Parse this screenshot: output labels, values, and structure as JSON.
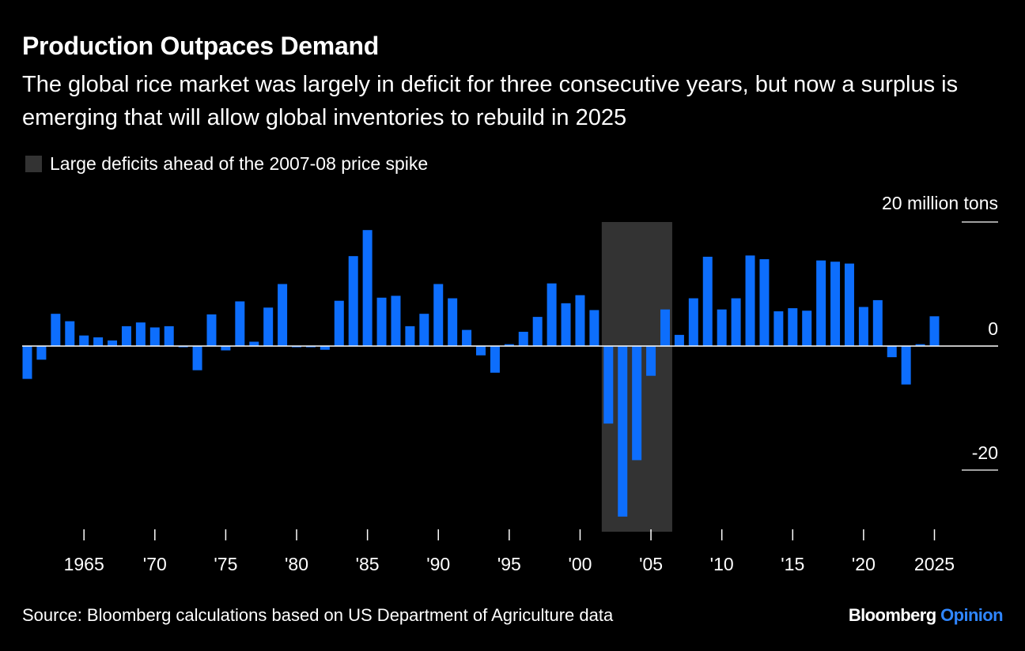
{
  "chart_data": {
    "type": "bar",
    "title": "Production Outpaces Demand",
    "subtitle": "The global rice market was largely in deficit for three consecutive years, but now a surplus is emerging that will allow global inventories to rebuild in 2025",
    "legend": [
      {
        "label": "Large deficits ahead of the 2007-08 price spike",
        "color": "#333333"
      }
    ],
    "highlight_range": [
      2002,
      2006
    ],
    "y_unit_label": "20 million tons",
    "y_ticks": [
      {
        "value": 20,
        "label": ""
      },
      {
        "value": 0,
        "label": "0"
      },
      {
        "value": -20,
        "label": "-20"
      }
    ],
    "ylim": [
      -30,
      20
    ],
    "x_tick_labels": [
      {
        "year": 1965,
        "label": "1965"
      },
      {
        "year": 1970,
        "label": "'70"
      },
      {
        "year": 1975,
        "label": "'75"
      },
      {
        "year": 1980,
        "label": "'80"
      },
      {
        "year": 1985,
        "label": "'85"
      },
      {
        "year": 1990,
        "label": "'90"
      },
      {
        "year": 1995,
        "label": "'95"
      },
      {
        "year": 2000,
        "label": "'00"
      },
      {
        "year": 2005,
        "label": "'05"
      },
      {
        "year": 2010,
        "label": "'10"
      },
      {
        "year": 2015,
        "label": "'15"
      },
      {
        "year": 2020,
        "label": "'20"
      },
      {
        "year": 2025,
        "label": "2025"
      }
    ],
    "bar_color": "#0d6efd",
    "years": [
      1961,
      1962,
      1963,
      1964,
      1965,
      1966,
      1967,
      1968,
      1969,
      1970,
      1971,
      1972,
      1973,
      1974,
      1975,
      1976,
      1977,
      1978,
      1979,
      1980,
      1981,
      1982,
      1983,
      1984,
      1985,
      1986,
      1987,
      1988,
      1989,
      1990,
      1991,
      1992,
      1993,
      1994,
      1995,
      1996,
      1997,
      1998,
      1999,
      2000,
      2001,
      2002,
      2003,
      2004,
      2005,
      2006,
      2007,
      2008,
      2009,
      2010,
      2011,
      2012,
      2013,
      2014,
      2015,
      2016,
      2017,
      2018,
      2019,
      2020,
      2021,
      2022,
      2023,
      2024,
      2025
    ],
    "values": [
      -5.3,
      -2.2,
      5.2,
      4.0,
      1.7,
      1.4,
      0.9,
      3.2,
      3.8,
      3.0,
      3.2,
      -0.2,
      -3.9,
      5.1,
      -0.7,
      7.2,
      0.7,
      6.2,
      10.0,
      -0.2,
      -0.2,
      -0.6,
      7.3,
      14.5,
      18.7,
      7.8,
      8.1,
      3.2,
      5.2,
      10.0,
      7.7,
      2.6,
      -1.5,
      -4.3,
      0.3,
      2.3,
      4.7,
      10.1,
      6.9,
      8.2,
      5.8,
      -12.5,
      -27.5,
      -18.4,
      -4.8,
      5.9,
      1.8,
      7.7,
      14.4,
      5.9,
      7.7,
      14.6,
      14.0,
      5.6,
      6.1,
      5.7,
      13.8,
      13.6,
      13.3,
      6.3,
      7.4,
      -1.8,
      -6.2,
      0.3,
      4.8
    ]
  },
  "source_text": "Source: Bloomberg calculations based on US Department of Agriculture data",
  "brand": {
    "name": "Bloomberg",
    "suffix": "Opinion"
  }
}
